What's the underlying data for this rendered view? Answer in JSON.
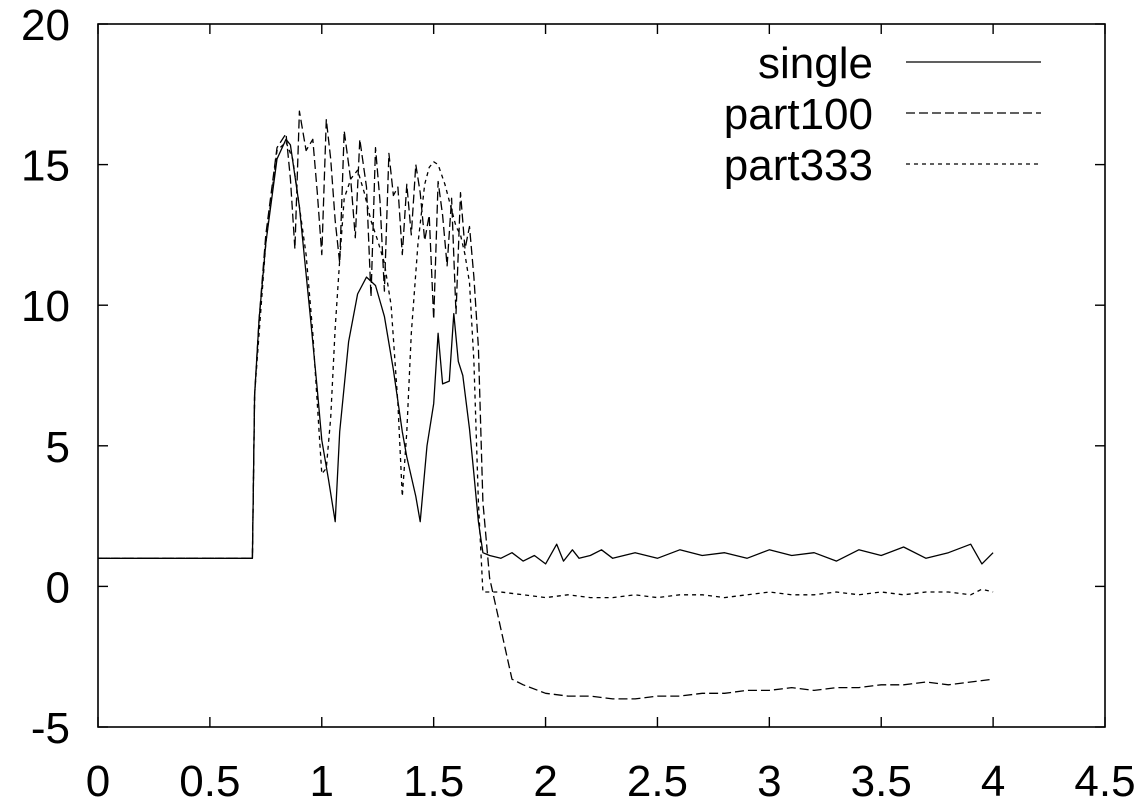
{
  "chart_data": {
    "type": "line",
    "title": "",
    "xlabel": "",
    "ylabel": "",
    "xlim": [
      0,
      4.5
    ],
    "ylim": [
      -5,
      20
    ],
    "grid": false,
    "legend_position": "top-right",
    "x_ticks": [
      0,
      0.5,
      1,
      1.5,
      2,
      2.5,
      3,
      3.5,
      4,
      4.5
    ],
    "x_tick_labels": [
      "0",
      "0.5",
      "1",
      "1.5",
      "2",
      "2.5",
      "3",
      "3.5",
      "4",
      "4.5"
    ],
    "y_ticks": [
      -5,
      0,
      5,
      10,
      15,
      20
    ],
    "y_tick_labels": [
      "-5",
      "0",
      "5",
      "10",
      "15",
      "20"
    ],
    "series": [
      {
        "name": "single",
        "dash": "solid",
        "x": [
          0,
          0.69,
          0.7,
          0.72,
          0.75,
          0.8,
          0.84,
          0.86,
          0.9,
          0.95,
          0.98,
          1.0,
          1.03,
          1.06,
          1.08,
          1.12,
          1.16,
          1.2,
          1.24,
          1.28,
          1.32,
          1.36,
          1.38,
          1.42,
          1.44,
          1.47,
          1.5,
          1.52,
          1.54,
          1.57,
          1.59,
          1.61,
          1.63,
          1.66,
          1.68,
          1.7,
          1.72,
          1.75,
          1.8,
          1.85,
          1.9,
          1.95,
          2.0,
          2.05,
          2.08,
          2.12,
          2.15,
          2.2,
          2.25,
          2.3,
          2.4,
          2.5,
          2.6,
          2.7,
          2.8,
          2.9,
          3.0,
          3.1,
          3.2,
          3.3,
          3.4,
          3.5,
          3.6,
          3.7,
          3.8,
          3.9,
          3.95,
          4.0
        ],
        "y": [
          1.0,
          1.0,
          6.8,
          9.5,
          12.2,
          15.2,
          15.9,
          15.7,
          13.5,
          9.5,
          7.0,
          5.2,
          3.8,
          2.3,
          5.5,
          8.7,
          10.4,
          11.0,
          10.7,
          9.6,
          7.7,
          5.5,
          4.6,
          3.2,
          2.3,
          5.0,
          6.5,
          9.0,
          7.2,
          7.3,
          9.7,
          8.0,
          7.5,
          5.6,
          4.0,
          2.3,
          1.2,
          1.1,
          1.0,
          1.2,
          0.9,
          1.1,
          0.8,
          1.5,
          0.9,
          1.3,
          1.0,
          1.1,
          1.3,
          1.0,
          1.2,
          1.0,
          1.3,
          1.1,
          1.2,
          1.0,
          1.3,
          1.1,
          1.2,
          0.9,
          1.3,
          1.1,
          1.4,
          1.0,
          1.2,
          1.5,
          0.8,
          1.2
        ]
      },
      {
        "name": "part100",
        "dash": "long-dash",
        "x": [
          0,
          0.69,
          0.7,
          0.72,
          0.75,
          0.8,
          0.84,
          0.86,
          0.88,
          0.9,
          0.93,
          0.96,
          0.98,
          1.0,
          1.02,
          1.04,
          1.06,
          1.08,
          1.1,
          1.13,
          1.15,
          1.17,
          1.2,
          1.22,
          1.24,
          1.26,
          1.28,
          1.3,
          1.32,
          1.34,
          1.36,
          1.38,
          1.4,
          1.42,
          1.44,
          1.46,
          1.48,
          1.5,
          1.52,
          1.54,
          1.56,
          1.58,
          1.6,
          1.62,
          1.64,
          1.66,
          1.68,
          1.7,
          1.72,
          1.75,
          1.8,
          1.85,
          1.9,
          2.0,
          2.1,
          2.2,
          2.3,
          2.4,
          2.5,
          2.6,
          2.7,
          2.8,
          2.9,
          3.0,
          3.1,
          3.2,
          3.3,
          3.4,
          3.5,
          3.6,
          3.7,
          3.8,
          3.9,
          4.0
        ],
        "y": [
          1.0,
          1.0,
          6.8,
          9.5,
          12.5,
          15.6,
          16.1,
          14.5,
          12.0,
          16.9,
          15.5,
          15.9,
          14.0,
          11.8,
          16.6,
          15.2,
          13.0,
          11.5,
          16.2,
          14.4,
          12.4,
          15.9,
          14.2,
          10.3,
          15.6,
          13.7,
          10.5,
          15.4,
          13.9,
          14.2,
          11.8,
          14.3,
          12.5,
          15.0,
          14.0,
          12.3,
          13.2,
          9.5,
          14.4,
          13.2,
          11.4,
          13.8,
          9.7,
          14.0,
          12.0,
          12.8,
          11.0,
          8.5,
          3.0,
          0.3,
          -1.5,
          -3.3,
          -3.5,
          -3.8,
          -3.9,
          -3.9,
          -4.0,
          -4.0,
          -3.9,
          -3.9,
          -3.8,
          -3.8,
          -3.7,
          -3.7,
          -3.6,
          -3.7,
          -3.6,
          -3.6,
          -3.5,
          -3.5,
          -3.4,
          -3.5,
          -3.4,
          -3.3
        ]
      },
      {
        "name": "part333",
        "dash": "short-dash",
        "x": [
          0,
          0.69,
          0.7,
          0.72,
          0.75,
          0.8,
          0.84,
          0.87,
          0.9,
          0.93,
          0.96,
          0.98,
          1.0,
          1.02,
          1.04,
          1.06,
          1.08,
          1.1,
          1.13,
          1.16,
          1.19,
          1.22,
          1.25,
          1.28,
          1.31,
          1.34,
          1.36,
          1.38,
          1.4,
          1.43,
          1.46,
          1.48,
          1.5,
          1.52,
          1.55,
          1.58,
          1.6,
          1.62,
          1.64,
          1.66,
          1.68,
          1.7,
          1.72,
          1.75,
          1.8,
          1.9,
          2.0,
          2.1,
          2.2,
          2.3,
          2.4,
          2.5,
          2.6,
          2.7,
          2.8,
          2.9,
          3.0,
          3.1,
          3.2,
          3.3,
          3.4,
          3.5,
          3.6,
          3.7,
          3.8,
          3.9,
          3.95,
          4.0
        ],
        "y": [
          1.0,
          1.0,
          6.8,
          9.0,
          12.2,
          15.5,
          15.8,
          15.2,
          13.5,
          11.8,
          9.0,
          6.5,
          4.0,
          4.2,
          6.0,
          9.2,
          11.6,
          13.8,
          14.5,
          14.8,
          14.0,
          13.0,
          12.3,
          11.5,
          10.0,
          6.5,
          3.2,
          5.5,
          9.0,
          12.2,
          14.3,
          14.9,
          15.1,
          15.0,
          14.3,
          13.4,
          12.8,
          12.5,
          11.8,
          10.8,
          8.0,
          3.0,
          -0.2,
          -0.2,
          -0.2,
          -0.3,
          -0.4,
          -0.3,
          -0.4,
          -0.4,
          -0.3,
          -0.4,
          -0.3,
          -0.3,
          -0.4,
          -0.3,
          -0.2,
          -0.3,
          -0.3,
          -0.2,
          -0.3,
          -0.2,
          -0.3,
          -0.2,
          -0.2,
          -0.3,
          -0.1,
          -0.2
        ]
      }
    ]
  }
}
